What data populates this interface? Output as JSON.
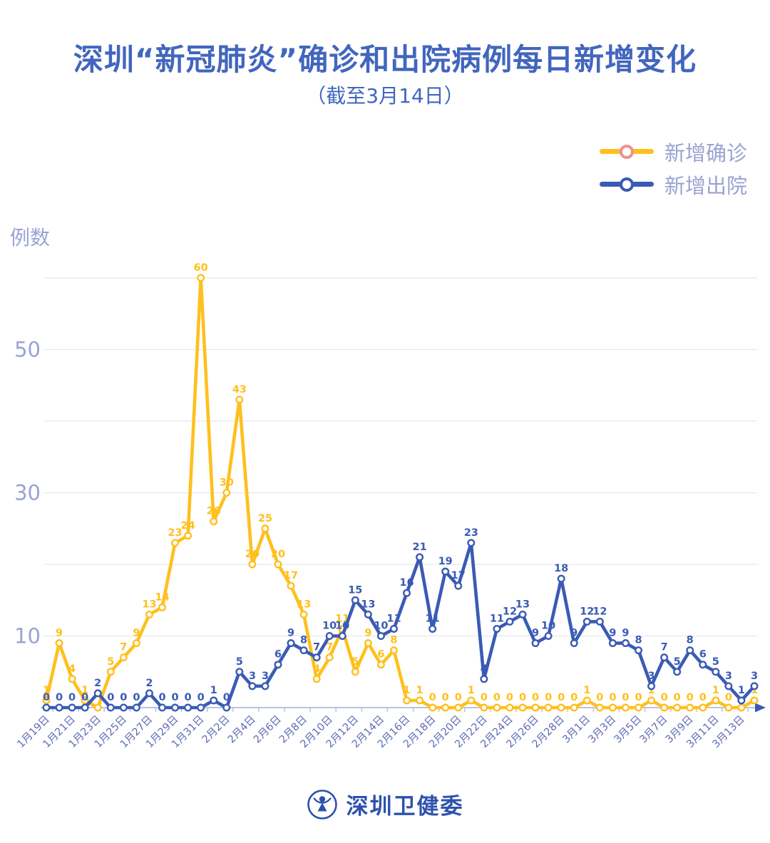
{
  "title": "深圳“新冠肺炎”确诊和出院病例每日新增变化",
  "subtitle": "（截至3月14日）",
  "y_axis_title": "例数",
  "legend": {
    "items": [
      {
        "label": "新增确诊",
        "color": "#FFC01E",
        "marker_ring": "#F08F8F"
      },
      {
        "label": "新增出院",
        "color": "#3A5BB5",
        "marker_ring": "#3A5BB5"
      }
    ]
  },
  "footer": {
    "brand": "深圳卫健委"
  },
  "colors": {
    "title": "#4266BE",
    "subtitle": "#4266BE",
    "legend_text": "#9AA3D2",
    "axis_label_light": "#9AA3D2",
    "date_label": "#5D6CB4",
    "gridline": "#E5E7F0",
    "axis_line": "#B9C2E4",
    "axis_arrow": "#3A5BB5",
    "brand": "#2D52AD",
    "confirmed": "#FFC01E",
    "discharged": "#3A5BB5"
  },
  "chart_data": {
    "type": "line",
    "title": "深圳“新冠肺炎”确诊和出院病例每日新增变化",
    "subtitle": "（截至3月14日）",
    "xlabel": "",
    "ylabel": "例数",
    "ylim": [
      0,
      62
    ],
    "yticks": [
      10,
      30,
      50
    ],
    "gridlines": [
      10,
      20,
      30,
      40,
      50,
      60
    ],
    "grid": true,
    "legend_position": "top-right",
    "x_label_interval": 2,
    "x": [
      "1月19日",
      "1月20日",
      "1月21日",
      "1月22日",
      "1月23日",
      "1月24日",
      "1月25日",
      "1月26日",
      "1月27日",
      "1月28日",
      "1月29日",
      "1月30日",
      "1月31日",
      "2月1日",
      "2月2日",
      "2月3日",
      "2月4日",
      "2月5日",
      "2月6日",
      "2月7日",
      "2月8日",
      "2月9日",
      "2月10日",
      "2月11日",
      "2月12日",
      "2月13日",
      "2月14日",
      "2月15日",
      "2月16日",
      "2月17日",
      "2月18日",
      "2月19日",
      "2月20日",
      "2月21日",
      "2月22日",
      "2月23日",
      "2月24日",
      "2月25日",
      "2月26日",
      "2月27日",
      "2月28日",
      "2月29日",
      "3月1日",
      "3月2日",
      "3月3日",
      "3月4日",
      "3月5日",
      "3月6日",
      "3月7日",
      "3月8日",
      "3月9日",
      "3月10日",
      "3月11日",
      "3月12日",
      "3月13日",
      "3月14日"
    ],
    "series": [
      {
        "id": "confirmed",
        "name": "新增确诊",
        "color": "#FFC01E",
        "values": [
          1,
          9,
          4,
          1,
          0,
          5,
          7,
          9,
          13,
          14,
          23,
          24,
          60,
          26,
          30,
          43,
          20,
          25,
          20,
          17,
          13,
          4,
          7,
          11,
          5,
          9,
          6,
          8,
          1,
          1,
          0,
          0,
          0,
          1,
          0,
          0,
          0,
          0,
          0,
          0,
          0,
          0,
          1,
          0,
          0,
          0,
          0,
          1,
          0,
          0,
          0,
          0,
          1,
          0,
          0,
          1
        ],
        "hidden_value_labels": [
          4,
          54
        ]
      },
      {
        "id": "discharged",
        "name": "新增出院",
        "color": "#3A5BB5",
        "values": [
          0,
          0,
          0,
          0,
          2,
          0,
          0,
          0,
          2,
          0,
          0,
          0,
          0,
          1,
          0,
          5,
          3,
          3,
          6,
          9,
          8,
          7,
          10,
          10,
          15,
          13,
          10,
          11,
          16,
          21,
          11,
          19,
          17,
          23,
          4,
          11,
          12,
          13,
          9,
          10,
          18,
          9,
          12,
          12,
          9,
          9,
          8,
          3,
          7,
          5,
          8,
          6,
          5,
          3,
          1,
          3
        ],
        "hidden_value_labels": []
      }
    ]
  }
}
